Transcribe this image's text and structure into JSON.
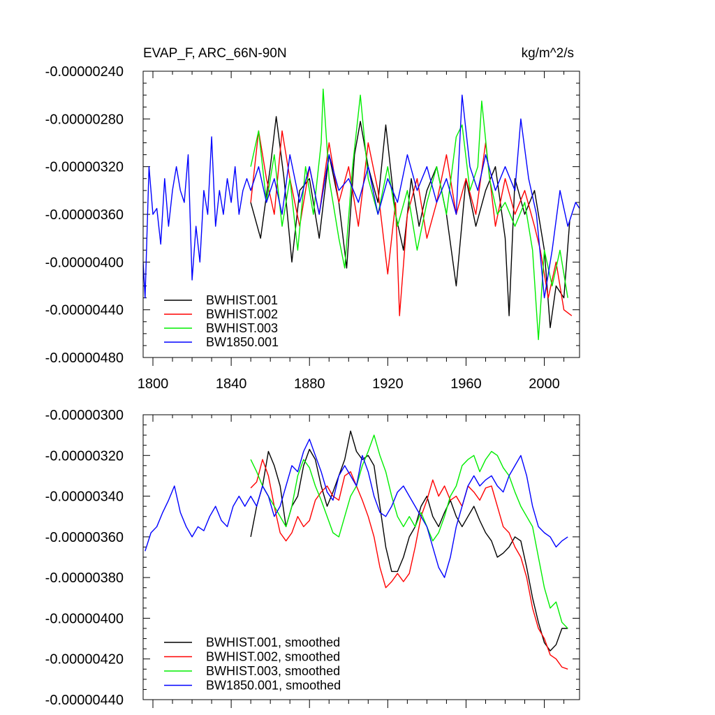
{
  "chart_data": [
    {
      "type": "line",
      "title": "EVAP_F, ARC_66N-90N",
      "units": "kg/m^2/s",
      "xlim": [
        1795,
        2018
      ],
      "ylim": [
        -4.8e-06,
        -2.4e-06
      ],
      "x_ticks": [
        "1800",
        "1840",
        "1880",
        "1920",
        "1960",
        "2000"
      ],
      "y_ticks": [
        "-0.00000240",
        "-0.00000280",
        "-0.00000320",
        "-0.00000360",
        "-0.00000400",
        "-0.00000440",
        "-0.00000480"
      ],
      "grid": false,
      "legend_position": "bottom-left",
      "series": [
        {
          "name": "BWHIST.001",
          "color": "#000000",
          "x": [
            1850,
            1855,
            1860,
            1863,
            1867,
            1871,
            1875,
            1880,
            1885,
            1890,
            1895,
            1899,
            1903,
            1906,
            1910,
            1915,
            1919,
            1924,
            1928,
            1932,
            1936,
            1940,
            1945,
            1950,
            1955,
            1960,
            1965,
            1970,
            1975,
            1980,
            1982,
            1985,
            1990,
            1995,
            2000,
            2003,
            2006,
            2010,
            2013
          ],
          "values": [
            -3.5e-06,
            -3.8e-06,
            -3.2e-06,
            -2.78e-06,
            -3.3e-06,
            -4e-06,
            -3.4e-06,
            -3.3e-06,
            -3.8e-06,
            -3.1e-06,
            -3.5e-06,
            -4.05e-06,
            -3.1e-06,
            -2.82e-06,
            -3.2e-06,
            -3.5e-06,
            -2.85e-06,
            -3.6e-06,
            -3.9e-06,
            -3.3e-06,
            -3.7e-06,
            -3.4e-06,
            -3.2e-06,
            -3.6e-06,
            -4.2e-06,
            -3.3e-06,
            -3.7e-06,
            -3.4e-06,
            -3.2e-06,
            -3.8e-06,
            -4.45e-06,
            -3.3e-06,
            -3.6e-06,
            -3.4e-06,
            -3.9e-06,
            -4.55e-06,
            -4.2e-06,
            -4.3e-06,
            -3.65e-06
          ]
        },
        {
          "name": "BWHIST.002",
          "color": "#ff0000",
          "x": [
            1850,
            1854,
            1858,
            1862,
            1866,
            1870,
            1875,
            1880,
            1885,
            1890,
            1895,
            1900,
            1905,
            1910,
            1915,
            1920,
            1924,
            1926,
            1930,
            1935,
            1940,
            1945,
            1950,
            1955,
            1960,
            1965,
            1970,
            1975,
            1980,
            1985,
            1990,
            1995,
            1998,
            2002,
            2006,
            2010,
            2014
          ],
          "values": [
            -3.5e-06,
            -2.9e-06,
            -3.3e-06,
            -3.6e-06,
            -2.9e-06,
            -3.3e-06,
            -3.7e-06,
            -3.2e-06,
            -3.6e-06,
            -3e-06,
            -3.5e-06,
            -3.2e-06,
            -3.7e-06,
            -3e-06,
            -3.4e-06,
            -4.1e-06,
            -3.5e-06,
            -4.45e-06,
            -3.6e-06,
            -3.3e-06,
            -3.8e-06,
            -3.5e-06,
            -3.1e-06,
            -3.6e-06,
            -3.3e-06,
            -3.6e-06,
            -3e-06,
            -3.7e-06,
            -3.3e-06,
            -3.6e-06,
            -3.4e-06,
            -3.7e-06,
            -3.9e-06,
            -4.3e-06,
            -4e-06,
            -4.4e-06,
            -4.45e-06
          ]
        },
        {
          "name": "BWHIST.003",
          "color": "#00ee00",
          "x": [
            1850,
            1854,
            1858,
            1862,
            1866,
            1870,
            1874,
            1878,
            1882,
            1886,
            1887,
            1890,
            1895,
            1898,
            1902,
            1906,
            1910,
            1915,
            1920,
            1925,
            1930,
            1935,
            1940,
            1945,
            1950,
            1955,
            1958,
            1962,
            1966,
            1968,
            1972,
            1976,
            1980,
            1985,
            1990,
            1994,
            1997,
            2000,
            2004,
            2008,
            2012
          ],
          "values": [
            -3.2e-06,
            -2.9e-06,
            -3.5e-06,
            -3.1e-06,
            -3.7e-06,
            -3.3e-06,
            -3.9e-06,
            -3.2e-06,
            -3.6e-06,
            -3e-06,
            -2.55e-06,
            -3.3e-06,
            -3.8e-06,
            -4.05e-06,
            -3.2e-06,
            -2.6e-06,
            -3.3e-06,
            -3.6e-06,
            -3.2e-06,
            -3.7e-06,
            -3.4e-06,
            -3.9e-06,
            -3.5e-06,
            -3.2e-06,
            -3.6e-06,
            -2.95e-06,
            -2.85e-06,
            -3.4e-06,
            -3.2e-06,
            -2.65e-06,
            -3.3e-06,
            -3.6e-06,
            -3.5e-06,
            -3.7e-06,
            -3.5e-06,
            -3.9e-06,
            -4.65e-06,
            -3.9e-06,
            -4.2e-06,
            -3.9e-06,
            -4.3e-06
          ]
        },
        {
          "name": "BW1850.001",
          "color": "#0000ff",
          "x": [
            1795,
            1796,
            1798,
            1800,
            1802,
            1804,
            1806,
            1808,
            1810,
            1812,
            1814,
            1816,
            1818,
            1820,
            1822,
            1824,
            1826,
            1828,
            1830,
            1832,
            1834,
            1836,
            1838,
            1840,
            1842,
            1844,
            1846,
            1848,
            1850,
            1854,
            1858,
            1862,
            1866,
            1870,
            1875,
            1880,
            1885,
            1890,
            1895,
            1900,
            1905,
            1910,
            1915,
            1920,
            1925,
            1930,
            1935,
            1940,
            1945,
            1950,
            1955,
            1958,
            1962,
            1966,
            1970,
            1975,
            1980,
            1985,
            1988,
            1992,
            1996,
            2000,
            2004,
            2008,
            2012,
            2016,
            2018
          ],
          "values": [
            -4e-06,
            -4.3e-06,
            -3.2e-06,
            -3.6e-06,
            -3.55e-06,
            -3.85e-06,
            -3.3e-06,
            -3.7e-06,
            -3.4e-06,
            -3.2e-06,
            -3.4e-06,
            -3.5e-06,
            -3.1e-06,
            -4.15e-06,
            -3.7e-06,
            -4e-06,
            -3.4e-06,
            -3.6e-06,
            -2.95e-06,
            -3.7e-06,
            -3.4e-06,
            -3.6e-06,
            -3.3e-06,
            -3.5e-06,
            -3.2e-06,
            -3.6e-06,
            -3.4e-06,
            -3.3e-06,
            -3.4e-06,
            -3.2e-06,
            -3.5e-06,
            -3.3e-06,
            -3.6e-06,
            -3.1e-06,
            -3.5e-06,
            -3.2e-06,
            -3.6e-06,
            -3.1e-06,
            -3.4e-06,
            -3.3e-06,
            -3.5e-06,
            -3.2e-06,
            -3.6e-06,
            -3.3e-06,
            -3.5e-06,
            -3.1e-06,
            -3.4e-06,
            -3.2e-06,
            -3.5e-06,
            -3.3e-06,
            -3.6e-06,
            -2.6e-06,
            -3.2e-06,
            -3.4e-06,
            -3.1e-06,
            -3.4e-06,
            -3.2e-06,
            -3.4e-06,
            -2.8e-06,
            -3.3e-06,
            -3.6e-06,
            -4.3e-06,
            -3.9e-06,
            -3.4e-06,
            -3.7e-06,
            -3.5e-06,
            -3.55e-06
          ]
        }
      ]
    },
    {
      "type": "line",
      "xlim": [
        1795,
        2018
      ],
      "ylim": [
        -4.4e-06,
        -3e-06
      ],
      "x_ticks": [
        "",
        "",
        "",
        "",
        "",
        ""
      ],
      "y_ticks": [
        "-0.00000300",
        "-0.00000320",
        "-0.00000340",
        "-0.00000360",
        "-0.00000380",
        "-0.00000400",
        "-0.00000420",
        "-0.00000440"
      ],
      "grid": false,
      "legend_position": "bottom-left",
      "series": [
        {
          "name": "BWHIST.001, smoothed",
          "color": "#000000",
          "x": [
            1850,
            1853,
            1856,
            1859,
            1862,
            1865,
            1868,
            1871,
            1874,
            1877,
            1880,
            1883,
            1886,
            1889,
            1892,
            1895,
            1898,
            1901,
            1904,
            1907,
            1910,
            1913,
            1916,
            1919,
            1922,
            1925,
            1928,
            1931,
            1934,
            1937,
            1940,
            1943,
            1946,
            1949,
            1952,
            1955,
            1958,
            1961,
            1964,
            1967,
            1970,
            1973,
            1976,
            1979,
            1982,
            1985,
            1988,
            1991,
            1994,
            1997,
            2000,
            2003,
            2006,
            2009,
            2012
          ],
          "values": [
            -3.6e-06,
            -3.45e-06,
            -3.35e-06,
            -3.18e-06,
            -3.25e-06,
            -3.35e-06,
            -3.55e-06,
            -3.45e-06,
            -3.4e-06,
            -3.25e-06,
            -3.17e-06,
            -3.22e-06,
            -3.35e-06,
            -3.45e-06,
            -3.38e-06,
            -3.3e-06,
            -3.22e-06,
            -3.08e-06,
            -3.18e-06,
            -3.22e-06,
            -3.2e-06,
            -3.25e-06,
            -3.45e-06,
            -3.65e-06,
            -3.77e-06,
            -3.77e-06,
            -3.7e-06,
            -3.6e-06,
            -3.55e-06,
            -3.45e-06,
            -3.4e-06,
            -3.5e-06,
            -3.55e-06,
            -3.48e-06,
            -3.42e-06,
            -3.5e-06,
            -3.55e-06,
            -3.5e-06,
            -3.45e-06,
            -3.52e-06,
            -3.58e-06,
            -3.62e-06,
            -3.7e-06,
            -3.68e-06,
            -3.65e-06,
            -3.6e-06,
            -3.62e-06,
            -3.75e-06,
            -3.9e-06,
            -4.02e-06,
            -4.12e-06,
            -4.16e-06,
            -4.13e-06,
            -4.05e-06,
            -4.05e-06
          ]
        },
        {
          "name": "BWHIST.002, smoothed",
          "color": "#ff0000",
          "x": [
            1850,
            1853,
            1856,
            1859,
            1862,
            1865,
            1868,
            1871,
            1874,
            1877,
            1880,
            1883,
            1886,
            1889,
            1892,
            1895,
            1898,
            1901,
            1904,
            1907,
            1910,
            1913,
            1916,
            1919,
            1922,
            1925,
            1928,
            1931,
            1934,
            1937,
            1940,
            1943,
            1946,
            1949,
            1952,
            1955,
            1958,
            1961,
            1964,
            1967,
            1970,
            1973,
            1976,
            1979,
            1982,
            1985,
            1988,
            1991,
            1994,
            1997,
            2000,
            2003,
            2006,
            2009,
            2012
          ],
          "values": [
            -3.36e-06,
            -3.33e-06,
            -3.22e-06,
            -3.3e-06,
            -3.45e-06,
            -3.58e-06,
            -3.62e-06,
            -3.58e-06,
            -3.5e-06,
            -3.55e-06,
            -3.52e-06,
            -3.42e-06,
            -3.38e-06,
            -3.35e-06,
            -3.4e-06,
            -3.42e-06,
            -3.3e-06,
            -3.28e-06,
            -3.35e-06,
            -3.42e-06,
            -3.5e-06,
            -3.6e-06,
            -3.75e-06,
            -3.85e-06,
            -3.82e-06,
            -3.78e-06,
            -3.82e-06,
            -3.78e-06,
            -3.65e-06,
            -3.5e-06,
            -3.42e-06,
            -3.32e-06,
            -3.4e-06,
            -3.35e-06,
            -3.42e-06,
            -3.4e-06,
            -3.45e-06,
            -3.35e-06,
            -3.38e-06,
            -3.42e-06,
            -3.36e-06,
            -3.35e-06,
            -3.45e-06,
            -3.55e-06,
            -3.58e-06,
            -3.65e-06,
            -3.7e-06,
            -3.8e-06,
            -3.95e-06,
            -4.05e-06,
            -4.1e-06,
            -4.18e-06,
            -4.2e-06,
            -4.24e-06,
            -4.25e-06
          ]
        },
        {
          "name": "BWHIST.003, smoothed",
          "color": "#00ee00",
          "x": [
            1850,
            1853,
            1856,
            1859,
            1862,
            1865,
            1868,
            1871,
            1874,
            1877,
            1880,
            1883,
            1886,
            1889,
            1892,
            1895,
            1898,
            1901,
            1904,
            1907,
            1910,
            1913,
            1916,
            1919,
            1922,
            1925,
            1928,
            1931,
            1934,
            1937,
            1940,
            1943,
            1946,
            1949,
            1952,
            1955,
            1958,
            1961,
            1964,
            1967,
            1970,
            1973,
            1976,
            1979,
            1982,
            1985,
            1988,
            1991,
            1994,
            1997,
            2000,
            2003,
            2006,
            2009,
            2012
          ],
          "values": [
            -3.22e-06,
            -3.28e-06,
            -3.35e-06,
            -3.4e-06,
            -3.45e-06,
            -3.5e-06,
            -3.55e-06,
            -3.45e-06,
            -3.3e-06,
            -3.22e-06,
            -3.26e-06,
            -3.35e-06,
            -3.42e-06,
            -3.5e-06,
            -3.58e-06,
            -3.6e-06,
            -3.5e-06,
            -3.4e-06,
            -3.35e-06,
            -3.25e-06,
            -3.18e-06,
            -3.1e-06,
            -3.2e-06,
            -3.28e-06,
            -3.4e-06,
            -3.5e-06,
            -3.55e-06,
            -3.5e-06,
            -3.55e-06,
            -3.48e-06,
            -3.55e-06,
            -3.62e-06,
            -3.58e-06,
            -3.5e-06,
            -3.4e-06,
            -3.35e-06,
            -3.25e-06,
            -3.22e-06,
            -3.2e-06,
            -3.28e-06,
            -3.22e-06,
            -3.18e-06,
            -3.2e-06,
            -3.26e-06,
            -3.3e-06,
            -3.38e-06,
            -3.45e-06,
            -3.5e-06,
            -3.55e-06,
            -3.7e-06,
            -3.85e-06,
            -3.95e-06,
            -3.92e-06,
            -4.02e-06,
            -4.05e-06
          ]
        },
        {
          "name": "BW1850.001, smoothed",
          "color": "#0000ff",
          "x": [
            1796,
            1799,
            1802,
            1805,
            1808,
            1811,
            1814,
            1817,
            1820,
            1823,
            1826,
            1829,
            1832,
            1835,
            1838,
            1841,
            1844,
            1847,
            1850,
            1853,
            1856,
            1859,
            1862,
            1865,
            1868,
            1871,
            1874,
            1877,
            1880,
            1883,
            1886,
            1889,
            1892,
            1895,
            1898,
            1901,
            1904,
            1907,
            1910,
            1913,
            1916,
            1919,
            1922,
            1925,
            1928,
            1931,
            1934,
            1937,
            1940,
            1943,
            1946,
            1949,
            1952,
            1955,
            1958,
            1961,
            1964,
            1967,
            1970,
            1973,
            1976,
            1979,
            1982,
            1985,
            1988,
            1991,
            1994,
            1997,
            2000,
            2003,
            2006,
            2009,
            2012
          ],
          "values": [
            -3.67e-06,
            -3.58e-06,
            -3.55e-06,
            -3.48e-06,
            -3.42e-06,
            -3.35e-06,
            -3.48e-06,
            -3.55e-06,
            -3.6e-06,
            -3.55e-06,
            -3.57e-06,
            -3.5e-06,
            -3.45e-06,
            -3.52e-06,
            -3.55e-06,
            -3.45e-06,
            -3.4e-06,
            -3.45e-06,
            -3.4e-06,
            -3.45e-06,
            -3.35e-06,
            -3.4e-06,
            -3.5e-06,
            -3.45e-06,
            -3.35e-06,
            -3.25e-06,
            -3.28e-06,
            -3.18e-06,
            -3.12e-06,
            -3.2e-06,
            -3.28e-06,
            -3.38e-06,
            -3.42e-06,
            -3.3e-06,
            -3.25e-06,
            -3.3e-06,
            -3.35e-06,
            -3.2e-06,
            -3.28e-06,
            -3.4e-06,
            -3.48e-06,
            -3.5e-06,
            -3.45e-06,
            -3.38e-06,
            -3.35e-06,
            -3.4e-06,
            -3.45e-06,
            -3.5e-06,
            -3.55e-06,
            -3.65e-06,
            -3.75e-06,
            -3.8e-06,
            -3.7e-06,
            -3.55e-06,
            -3.45e-06,
            -3.35e-06,
            -3.3e-06,
            -3.35e-06,
            -3.32e-06,
            -3.3e-06,
            -3.35e-06,
            -3.38e-06,
            -3.3e-06,
            -3.25e-06,
            -3.2e-06,
            -3.3e-06,
            -3.45e-06,
            -3.55e-06,
            -3.58e-06,
            -3.6e-06,
            -3.65e-06,
            -3.62e-06,
            -3.6e-06
          ]
        }
      ]
    }
  ]
}
